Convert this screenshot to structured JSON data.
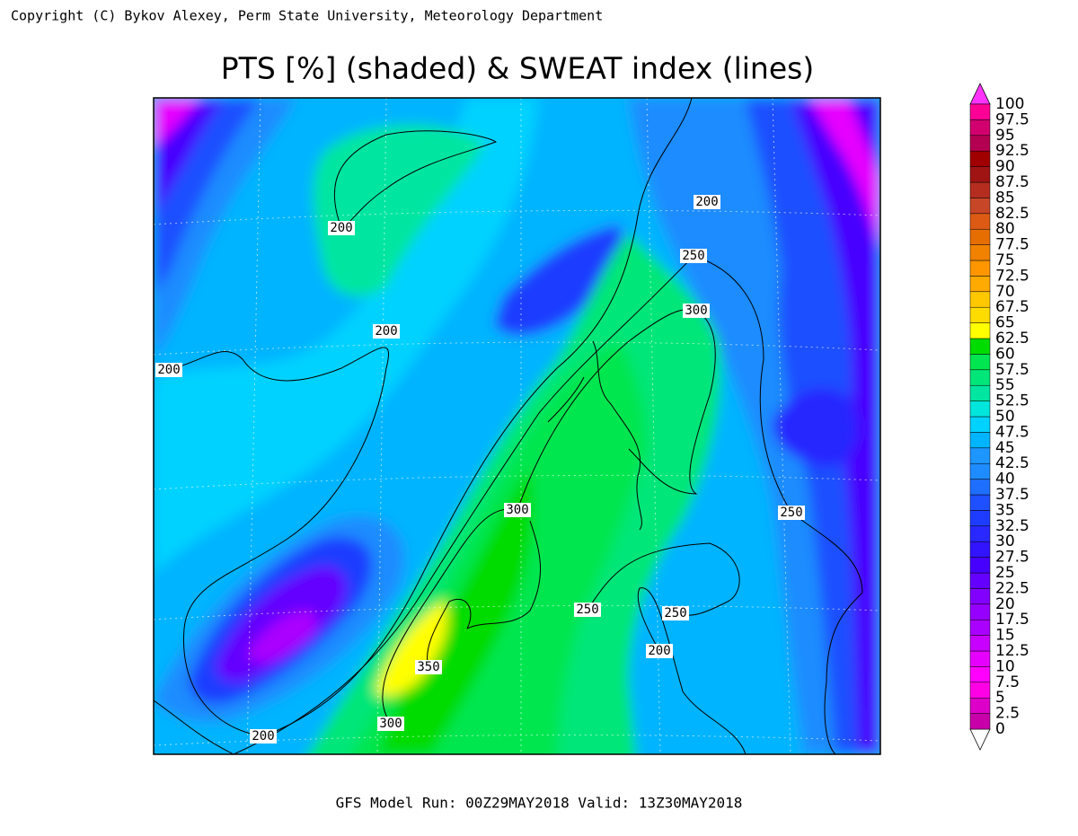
{
  "copyright": "Copyright (C) Bykov Alexey, Perm State University, Meteorology Department",
  "title": "PTS [%] (shaded) & SWEAT index (lines)",
  "footer": "GFS Model Run: 00Z29MAY2018 Valid: 13Z30MAY2018",
  "colorbar": {
    "levels": [
      0,
      2.5,
      5,
      7.5,
      10,
      12.5,
      15,
      17.5,
      20,
      22.5,
      25,
      27.5,
      30,
      32.5,
      35,
      37.5,
      40,
      42.5,
      45,
      47.5,
      50,
      52.5,
      55,
      57.5,
      60,
      62.5,
      65,
      67.5,
      70,
      72.5,
      75,
      77.5,
      80,
      82.5,
      85,
      87.5,
      90,
      92.5,
      95,
      97.5,
      100
    ],
    "colors": [
      "#c800aa",
      "#dc00c8",
      "#ff00e6",
      "#ff00ff",
      "#e600ff",
      "#c800ff",
      "#aa00ff",
      "#9600ff",
      "#8200ff",
      "#6400ff",
      "#4600ff",
      "#3214ff",
      "#2828ff",
      "#1e3cff",
      "#1e50ff",
      "#1e6eff",
      "#1e8cff",
      "#1e96ff",
      "#00b4ff",
      "#00d2ff",
      "#00e6dc",
      "#00e6a0",
      "#00e678",
      "#00e650",
      "#00dc00",
      "#ffff00",
      "#ffdc00",
      "#ffc800",
      "#ffaa00",
      "#ff9600",
      "#f08200",
      "#e66e00",
      "#dc5a14",
      "#c84628",
      "#b42d1e",
      "#a01414",
      "#a00000",
      "#b40050",
      "#d2006e",
      "#ff0096"
    ],
    "above_color": "#ff33ff",
    "below_color": "#ffffff"
  },
  "contour_labels": [
    200,
    200,
    200,
    200,
    250,
    300,
    300,
    250,
    250,
    250,
    200,
    350,
    300,
    200
  ]
}
